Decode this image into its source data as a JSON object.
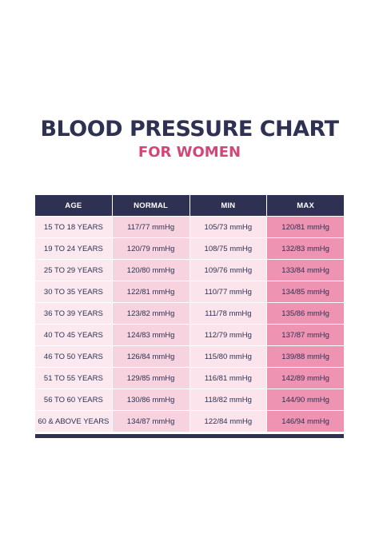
{
  "title": "BLOOD PRESSURE CHART",
  "subtitle": "FOR WOMEN",
  "colors": {
    "navy": "#2e3152",
    "accent_pink": "#d44678",
    "age_bg": "#fbe9ef",
    "normal_bg": "#f7d3df",
    "min_bg": "#fbe4ec",
    "max_bg": "#ee93b2"
  },
  "table": {
    "headers": [
      "AGE",
      "NORMAL",
      "MIN",
      "MAX"
    ],
    "rows": [
      [
        "15 TO 18 YEARS",
        "117/77 mmHg",
        "105/73 mmHg",
        "120/81 mmHg"
      ],
      [
        "19 TO 24 YEARS",
        "120/79 mmHg",
        "108/75 mmHg",
        "132/83 mmHg"
      ],
      [
        "25 TO 29 YEARS",
        "120/80 mmHg",
        "109/76 mmHg",
        "133/84 mmHg"
      ],
      [
        "30 TO 35 YEARS",
        "122/81 mmHg",
        "110/77 mmHg",
        "134/85 mmHg"
      ],
      [
        "36 TO 39 YEARS",
        "123/82 mmHg",
        "111/78 mmHg",
        "135/86 mmHg"
      ],
      [
        "40 TO 45 YEARS",
        "124/83 mmHg",
        "112/79 mmHg",
        "137/87 mmHg"
      ],
      [
        "46 TO 50 YEARS",
        "126/84 mmHg",
        "115/80 mmHg",
        "139/88 mmHg"
      ],
      [
        "51 TO 55 YEARS",
        "129/85 mmHg",
        "116/81 mmHg",
        "142/89 mmHg"
      ],
      [
        "56 TO 60 YEARS",
        "130/86 mmHg",
        "118/82 mmHg",
        "144/90 mmHg"
      ],
      [
        "60 & ABOVE YEARS",
        "134/87 mmHg",
        "122/84 mmHg",
        "146/94 mmHg"
      ]
    ]
  }
}
